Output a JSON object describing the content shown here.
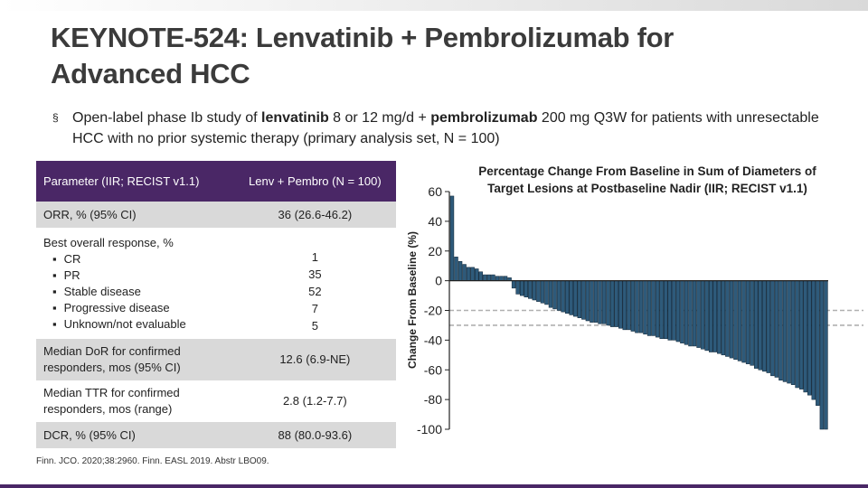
{
  "slide": {
    "title_line1": "KEYNOTE-524: Lenvatinib + Pembrolizumab for",
    "title_line2": "Advanced HCC",
    "bullet_mark": "§",
    "bullet": {
      "t1": "Open-label phase Ib study of ",
      "b1": "lenvatinib",
      "t2": " 8 or 12 mg/d + ",
      "b2": "pembrolizumab",
      "t3": " 200 mg Q3W for patients with unresectable HCC with no prior systemic therapy (primary analysis set, N = 100)"
    },
    "footnote": "Finn. JCO. 2020;38:2960. Finn. EASL 2019. Abstr LBO09.",
    "accent_color": "#4a2766"
  },
  "table": {
    "header": {
      "param": "Parameter (IIR; RECIST v1.1)",
      "value": "Lenv + Pembro (N = 100)"
    },
    "orr": {
      "label": "ORR, % (95% CI)",
      "value": "36 (26.6-46.2)"
    },
    "bor": {
      "label": "Best overall response, %",
      "items": [
        {
          "label": "CR",
          "value": "1"
        },
        {
          "label": "PR",
          "value": "35"
        },
        {
          "label": "Stable disease",
          "value": "52"
        },
        {
          "label": "Progressive disease",
          "value": "7"
        },
        {
          "label": "Unknown/not evaluable",
          "value": "5"
        }
      ]
    },
    "dor": {
      "label": "Median DoR for confirmed responders, mos (95% CI)",
      "value": "12.6 (6.9-NE)"
    },
    "ttr": {
      "label": "Median TTR for confirmed responders, mos (range)",
      "value": "2.8 (1.2-7.7)"
    },
    "dcr": {
      "label": "DCR, % (95% CI)",
      "value": "88 (80.0-93.6)"
    }
  },
  "chart_data": {
    "type": "bar",
    "title": "Percentage Change From Baseline in Sum of Diameters of Target Lesions at Postbaseline Nadir (IIR; RECIST v1.1)",
    "ylabel": "Change From Baseline (%)",
    "xlabel": "",
    "ylim": [
      -100,
      60
    ],
    "yticks": [
      "60",
      "40",
      "20",
      "0",
      "-20",
      "-40",
      "-60",
      "-80",
      "-100"
    ],
    "reference_lines": [
      -20,
      -30
    ],
    "bar_color": "#2e5a7a",
    "values": [
      57,
      16,
      13,
      11,
      9,
      9,
      8,
      6,
      4,
      4,
      4,
      3,
      3,
      3,
      2,
      -5,
      -9,
      -10,
      -11,
      -12,
      -13,
      -14,
      -15,
      -16,
      -18,
      -19,
      -20,
      -21,
      -22,
      -23,
      -24,
      -25,
      -26,
      -27,
      -28,
      -28,
      -29,
      -29,
      -30,
      -31,
      -31,
      -32,
      -33,
      -33,
      -34,
      -35,
      -35,
      -36,
      -37,
      -37,
      -38,
      -39,
      -39,
      -40,
      -40,
      -41,
      -42,
      -43,
      -44,
      -44,
      -45,
      -46,
      -47,
      -48,
      -48,
      -49,
      -50,
      -51,
      -52,
      -53,
      -54,
      -55,
      -56,
      -57,
      -59,
      -60,
      -61,
      -62,
      -64,
      -65,
      -67,
      -68,
      -69,
      -70,
      -72,
      -73,
      -75,
      -77,
      -80,
      -84,
      -100,
      -100
    ]
  }
}
